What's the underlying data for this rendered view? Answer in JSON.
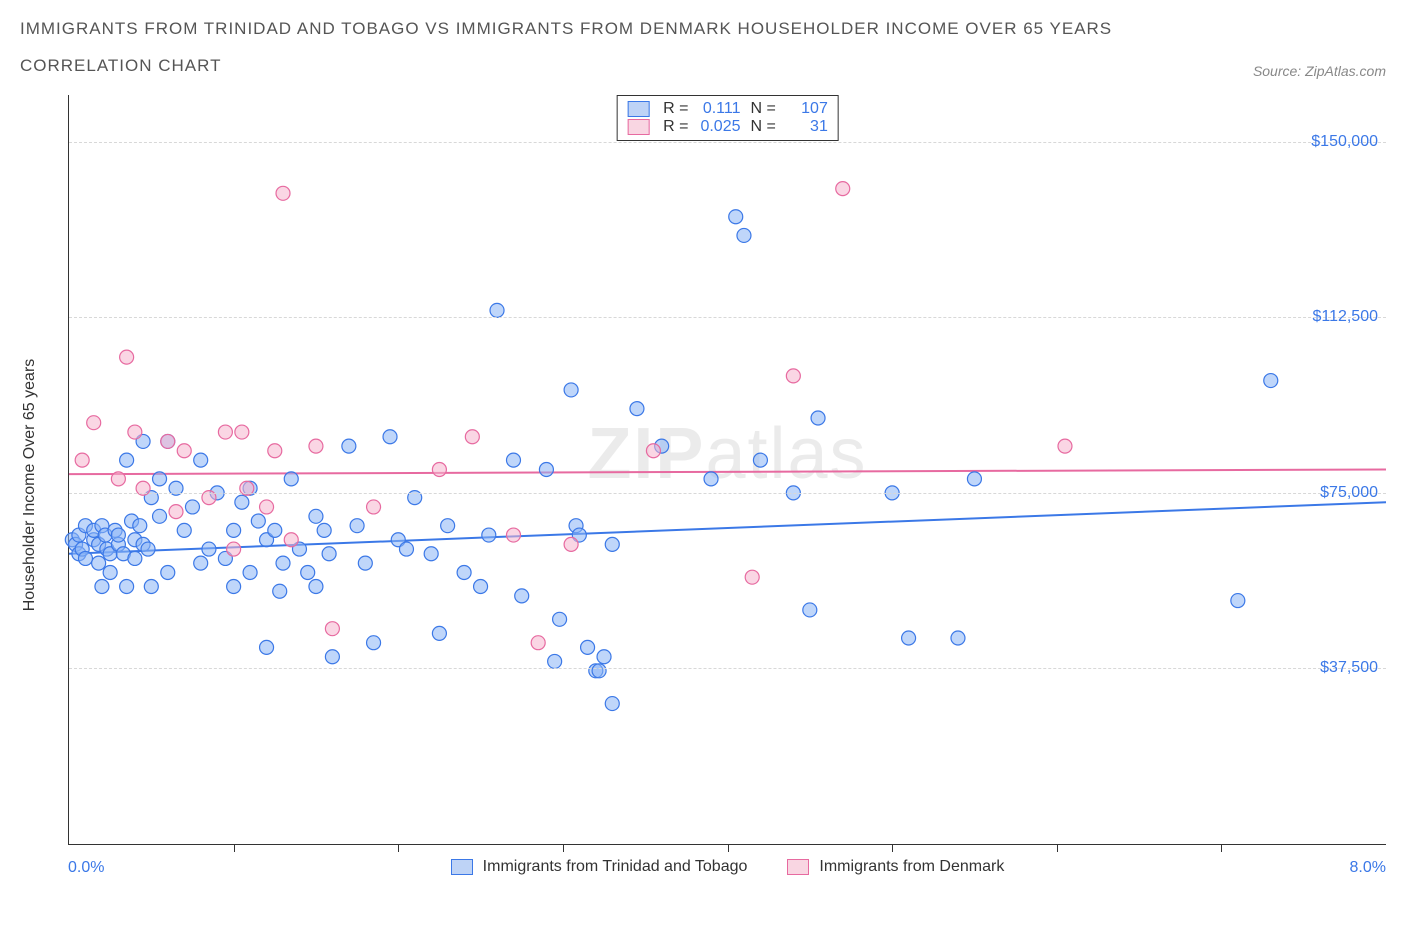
{
  "title_line1": "IMMIGRANTS FROM TRINIDAD AND TOBAGO VS IMMIGRANTS FROM DENMARK HOUSEHOLDER INCOME OVER 65 YEARS",
  "title_line2": "CORRELATION CHART",
  "source_label": "Source: ZipAtlas.com",
  "ylabel": "Householder Income Over 65 years",
  "watermark_bold": "ZIP",
  "watermark_rest": "atlas",
  "chart": {
    "type": "scatter",
    "background_color": "#ffffff",
    "grid_color": "#d8d8d8",
    "axis_color": "#333333",
    "xlim": [
      0.0,
      8.0
    ],
    "ylim": [
      0,
      160000
    ],
    "xlim_labels": [
      "0.0%",
      "8.0%"
    ],
    "xtick_positions": [
      1.0,
      2.0,
      3.0,
      4.0,
      5.0,
      6.0,
      7.0
    ],
    "yticks": [
      37500,
      75000,
      112500,
      150000
    ],
    "ytick_labels": [
      "$37,500",
      "$75,000",
      "$112,500",
      "$150,000"
    ],
    "marker_radius": 7,
    "marker_opacity": 0.55,
    "marker_stroke_width": 1.2,
    "line_width": 2,
    "series": [
      {
        "id": "tt",
        "label": "Immigrants from Trinidad and Tobago",
        "color_fill": "#8ab4f5",
        "color_stroke": "#3b78e7",
        "R": "0.111",
        "N": "107",
        "trend": {
          "y_at_xmin": 62000,
          "y_at_xmax": 73000
        },
        "points": [
          [
            0.02,
            65000
          ],
          [
            0.04,
            64000
          ],
          [
            0.06,
            62000
          ],
          [
            0.06,
            66000
          ],
          [
            0.08,
            63000
          ],
          [
            0.1,
            68000
          ],
          [
            0.1,
            61000
          ],
          [
            0.15,
            65000
          ],
          [
            0.15,
            67000
          ],
          [
            0.18,
            60000
          ],
          [
            0.18,
            64000
          ],
          [
            0.2,
            55000
          ],
          [
            0.2,
            68000
          ],
          [
            0.22,
            66000
          ],
          [
            0.23,
            63000
          ],
          [
            0.25,
            62000
          ],
          [
            0.25,
            58000
          ],
          [
            0.28,
            67000
          ],
          [
            0.3,
            64000
          ],
          [
            0.3,
            66000
          ],
          [
            0.33,
            62000
          ],
          [
            0.35,
            82000
          ],
          [
            0.35,
            55000
          ],
          [
            0.38,
            69000
          ],
          [
            0.4,
            65000
          ],
          [
            0.4,
            61000
          ],
          [
            0.43,
            68000
          ],
          [
            0.45,
            64000
          ],
          [
            0.45,
            86000
          ],
          [
            0.48,
            63000
          ],
          [
            0.5,
            74000
          ],
          [
            0.5,
            55000
          ],
          [
            0.55,
            78000
          ],
          [
            0.55,
            70000
          ],
          [
            0.6,
            86000
          ],
          [
            0.6,
            58000
          ],
          [
            0.65,
            76000
          ],
          [
            0.7,
            67000
          ],
          [
            0.75,
            72000
          ],
          [
            0.8,
            60000
          ],
          [
            0.8,
            82000
          ],
          [
            0.85,
            63000
          ],
          [
            0.9,
            75000
          ],
          [
            0.95,
            61000
          ],
          [
            1.0,
            67000
          ],
          [
            1.0,
            55000
          ],
          [
            1.05,
            73000
          ],
          [
            1.1,
            76000
          ],
          [
            1.1,
            58000
          ],
          [
            1.15,
            69000
          ],
          [
            1.2,
            65000
          ],
          [
            1.2,
            42000
          ],
          [
            1.25,
            67000
          ],
          [
            1.28,
            54000
          ],
          [
            1.3,
            60000
          ],
          [
            1.35,
            78000
          ],
          [
            1.4,
            63000
          ],
          [
            1.45,
            58000
          ],
          [
            1.5,
            55000
          ],
          [
            1.5,
            70000
          ],
          [
            1.55,
            67000
          ],
          [
            1.58,
            62000
          ],
          [
            1.6,
            40000
          ],
          [
            1.7,
            85000
          ],
          [
            1.75,
            68000
          ],
          [
            1.8,
            60000
          ],
          [
            1.85,
            43000
          ],
          [
            1.95,
            87000
          ],
          [
            2.0,
            65000
          ],
          [
            2.05,
            63000
          ],
          [
            2.1,
            74000
          ],
          [
            2.2,
            62000
          ],
          [
            2.25,
            45000
          ],
          [
            2.3,
            68000
          ],
          [
            2.4,
            58000
          ],
          [
            2.5,
            55000
          ],
          [
            2.55,
            66000
          ],
          [
            2.6,
            114000
          ],
          [
            2.7,
            82000
          ],
          [
            2.75,
            53000
          ],
          [
            2.9,
            80000
          ],
          [
            2.95,
            39000
          ],
          [
            2.98,
            48000
          ],
          [
            3.05,
            97000
          ],
          [
            3.08,
            68000
          ],
          [
            3.1,
            66000
          ],
          [
            3.15,
            42000
          ],
          [
            3.2,
            37000
          ],
          [
            3.22,
            37000
          ],
          [
            3.25,
            40000
          ],
          [
            3.3,
            64000
          ],
          [
            3.3,
            30000
          ],
          [
            3.45,
            93000
          ],
          [
            3.6,
            85000
          ],
          [
            3.9,
            78000
          ],
          [
            4.05,
            134000
          ],
          [
            4.1,
            130000
          ],
          [
            4.2,
            82000
          ],
          [
            4.4,
            75000
          ],
          [
            4.5,
            50000
          ],
          [
            4.55,
            91000
          ],
          [
            5.0,
            75000
          ],
          [
            5.1,
            44000
          ],
          [
            5.4,
            44000
          ],
          [
            5.5,
            78000
          ],
          [
            7.1,
            52000
          ],
          [
            7.3,
            99000
          ]
        ]
      },
      {
        "id": "dk",
        "label": "Immigrants from Denmark",
        "color_fill": "#f5b4cd",
        "color_stroke": "#e76aa0",
        "R": "0.025",
        "N": "31",
        "trend": {
          "y_at_xmin": 79000,
          "y_at_xmax": 80000
        },
        "points": [
          [
            0.08,
            82000
          ],
          [
            0.15,
            90000
          ],
          [
            0.3,
            78000
          ],
          [
            0.35,
            104000
          ],
          [
            0.4,
            88000
          ],
          [
            0.45,
            76000
          ],
          [
            0.6,
            86000
          ],
          [
            0.65,
            71000
          ],
          [
            0.7,
            84000
          ],
          [
            0.85,
            74000
          ],
          [
            0.95,
            88000
          ],
          [
            1.0,
            63000
          ],
          [
            1.05,
            88000
          ],
          [
            1.08,
            76000
          ],
          [
            1.2,
            72000
          ],
          [
            1.25,
            84000
          ],
          [
            1.3,
            139000
          ],
          [
            1.35,
            65000
          ],
          [
            1.5,
            85000
          ],
          [
            1.6,
            46000
          ],
          [
            1.85,
            72000
          ],
          [
            2.25,
            80000
          ],
          [
            2.45,
            87000
          ],
          [
            2.7,
            66000
          ],
          [
            2.85,
            43000
          ],
          [
            3.05,
            64000
          ],
          [
            3.55,
            84000
          ],
          [
            4.15,
            57000
          ],
          [
            4.4,
            100000
          ],
          [
            4.7,
            140000
          ],
          [
            6.05,
            85000
          ]
        ]
      }
    ]
  },
  "legend": {
    "stat1_label": "R =",
    "stat2_label": "N ="
  }
}
